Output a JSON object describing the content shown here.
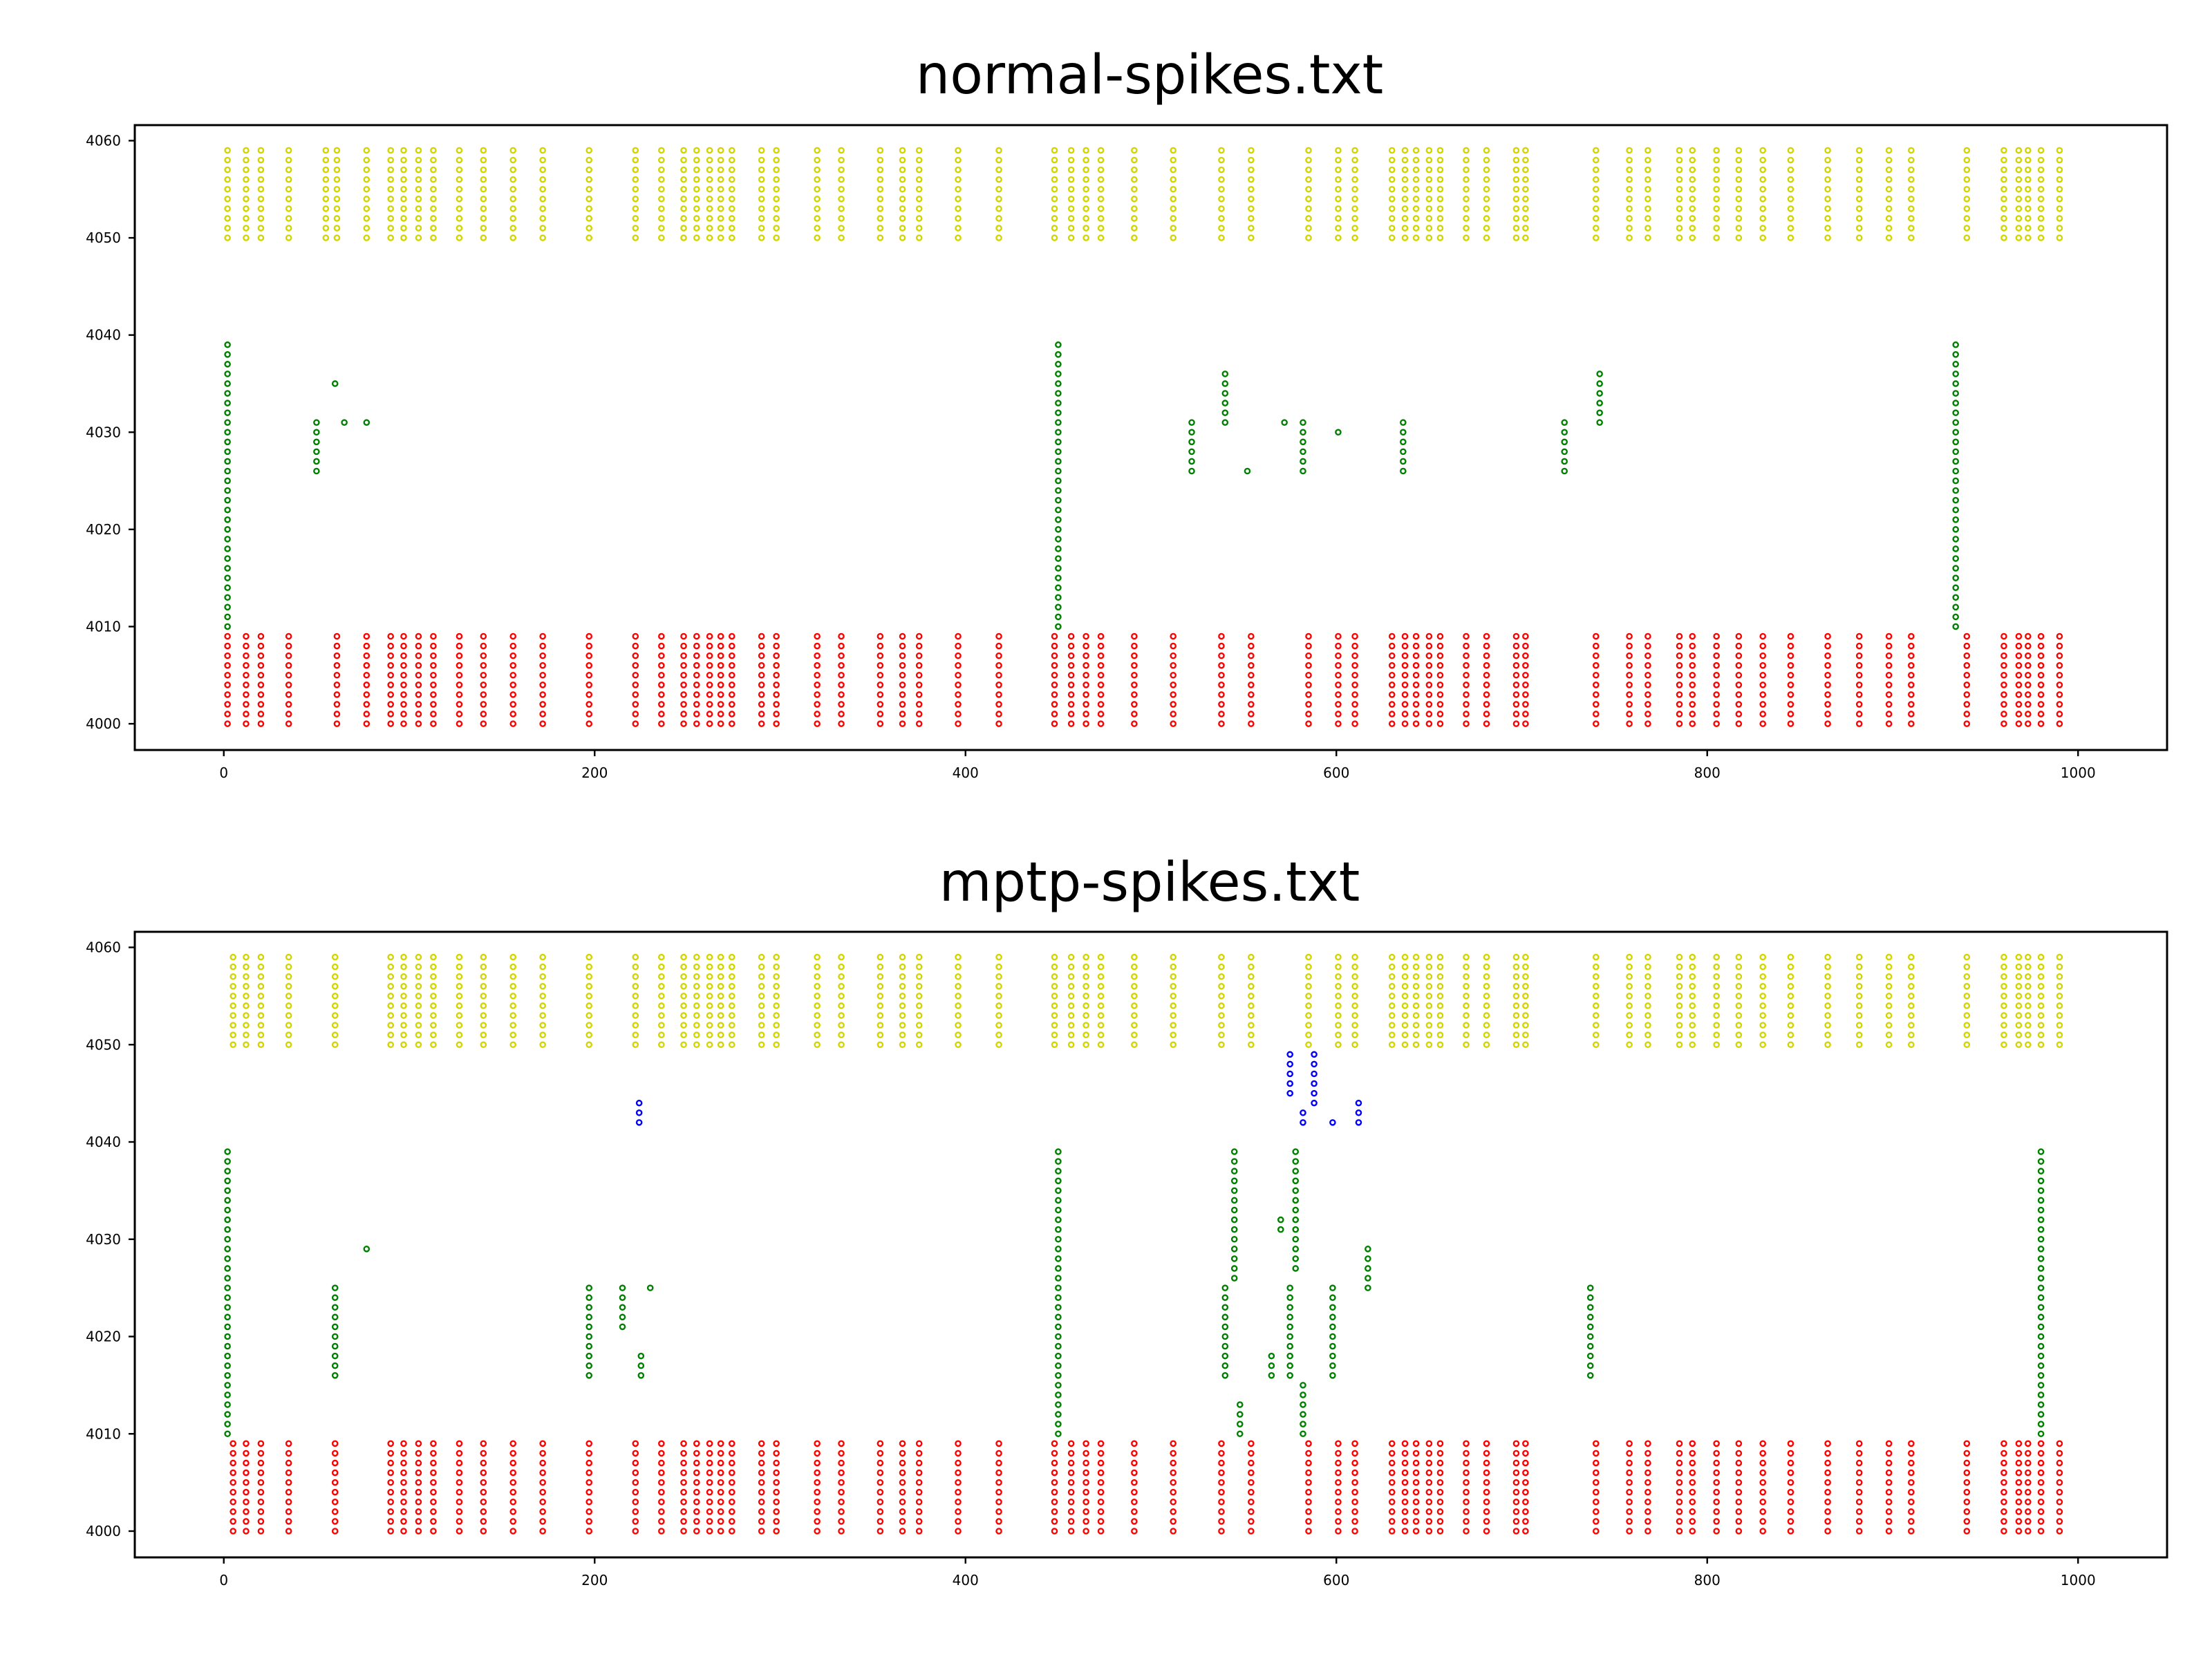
{
  "chart_data": [
    {
      "type": "scatter",
      "title": "normal-spikes.txt",
      "xlabel": "",
      "ylabel": "",
      "xlim": [
        -48,
        1048
      ],
      "ylim": [
        3997.3,
        4061.6
      ],
      "xticks": [
        0,
        200,
        400,
        600,
        800,
        1000
      ],
      "yticks": [
        4000,
        4010,
        4020,
        4030,
        4040,
        4050,
        4060
      ],
      "grid": false,
      "legend": "none",
      "series": [
        {
          "color": "#ff0000",
          "marker": "open-circle",
          "neuron_ids": [
            4000,
            4009
          ],
          "spike_times": [
            2,
            12,
            20,
            35,
            61,
            77,
            90,
            97,
            105,
            113,
            127,
            140,
            156,
            172,
            197,
            222,
            236,
            248,
            255,
            262,
            268,
            274,
            290,
            298,
            320,
            333,
            354,
            366,
            375,
            396,
            418,
            448,
            457,
            465,
            473,
            491,
            512,
            538,
            554,
            585,
            601,
            610,
            630,
            637,
            643,
            650,
            656,
            670,
            681,
            697,
            702,
            740,
            758,
            768,
            785,
            792,
            805,
            817,
            830,
            845,
            865,
            882,
            898,
            910,
            940,
            960,
            968,
            973,
            980,
            990
          ]
        },
        {
          "color": "#d4d400",
          "marker": "open-circle",
          "neuron_ids": [
            4050,
            4059
          ],
          "spike_times": [
            2,
            12,
            20,
            35,
            55,
            61,
            77,
            90,
            97,
            105,
            113,
            127,
            140,
            156,
            172,
            197,
            222,
            236,
            248,
            255,
            262,
            268,
            274,
            290,
            298,
            320,
            333,
            354,
            366,
            375,
            396,
            418,
            448,
            457,
            465,
            473,
            491,
            512,
            538,
            554,
            585,
            601,
            610,
            630,
            637,
            643,
            650,
            656,
            670,
            681,
            697,
            702,
            740,
            758,
            768,
            785,
            792,
            805,
            817,
            830,
            845,
            865,
            882,
            898,
            910,
            940,
            960,
            968,
            973,
            980,
            990
          ]
        },
        {
          "color": "#008000",
          "marker": "open-circle",
          "points": [
            {
              "t": 2,
              "ids": [
                4010,
                4039
              ]
            },
            {
              "t": 450,
              "ids": [
                4010,
                4039
              ]
            },
            {
              "t": 934,
              "ids": [
                4010,
                4039
              ]
            },
            {
              "t": 50,
              "ids": [
                4026,
                4031
              ]
            },
            {
              "t": 60,
              "ids": [
                4035,
                4035
              ]
            },
            {
              "t": 65,
              "ids": [
                4031,
                4031
              ]
            },
            {
              "t": 77,
              "ids": [
                4031,
                4031
              ]
            },
            {
              "t": 522,
              "ids": [
                4026,
                4031
              ]
            },
            {
              "t": 540,
              "ids": [
                4031,
                4036
              ]
            },
            {
              "t": 552,
              "ids": [
                4026,
                4026
              ]
            },
            {
              "t": 572,
              "ids": [
                4031,
                4031
              ]
            },
            {
              "t": 582,
              "ids": [
                4026,
                4031
              ]
            },
            {
              "t": 601,
              "ids": [
                4030,
                4030
              ]
            },
            {
              "t": 636,
              "ids": [
                4026,
                4031
              ]
            },
            {
              "t": 723,
              "ids": [
                4026,
                4031
              ]
            },
            {
              "t": 742,
              "ids": [
                4031,
                4036
              ]
            }
          ]
        }
      ]
    },
    {
      "type": "scatter",
      "title": "mptp-spikes.txt",
      "xlabel": "",
      "ylabel": "",
      "xlim": [
        -48,
        1048
      ],
      "ylim": [
        3997.3,
        4061.6
      ],
      "xticks": [
        0,
        200,
        400,
        600,
        800,
        1000
      ],
      "yticks": [
        4000,
        4010,
        4020,
        4030,
        4040,
        4050,
        4060
      ],
      "grid": false,
      "legend": "none",
      "series": [
        {
          "color": "#ff0000",
          "marker": "open-circle",
          "neuron_ids": [
            4000,
            4009
          ],
          "spike_times": [
            5,
            12,
            20,
            35,
            60,
            90,
            97,
            105,
            113,
            127,
            140,
            156,
            172,
            197,
            222,
            236,
            248,
            255,
            262,
            268,
            274,
            290,
            298,
            320,
            333,
            354,
            366,
            375,
            396,
            418,
            448,
            457,
            465,
            473,
            491,
            512,
            538,
            554,
            585,
            601,
            610,
            630,
            637,
            643,
            650,
            656,
            670,
            681,
            697,
            702,
            740,
            758,
            768,
            785,
            792,
            805,
            817,
            830,
            845,
            865,
            882,
            898,
            910,
            940,
            960,
            968,
            973,
            980,
            990
          ]
        },
        {
          "color": "#d4d400",
          "marker": "open-circle",
          "neuron_ids": [
            4050,
            4059
          ],
          "spike_times": [
            5,
            12,
            20,
            35,
            60,
            90,
            97,
            105,
            113,
            127,
            140,
            156,
            172,
            197,
            222,
            236,
            248,
            255,
            262,
            268,
            274,
            290,
            298,
            320,
            333,
            354,
            366,
            375,
            396,
            418,
            448,
            457,
            465,
            473,
            491,
            512,
            538,
            554,
            585,
            601,
            610,
            630,
            637,
            643,
            650,
            656,
            670,
            681,
            697,
            702,
            740,
            758,
            768,
            785,
            792,
            805,
            817,
            830,
            845,
            865,
            882,
            898,
            910,
            940,
            960,
            968,
            973,
            980,
            990
          ]
        },
        {
          "color": "#008000",
          "marker": "open-circle",
          "points": [
            {
              "t": 2,
              "ids": [
                4010,
                4039
              ]
            },
            {
              "t": 450,
              "ids": [
                4010,
                4039
              ]
            },
            {
              "t": 980,
              "ids": [
                4010,
                4039
              ]
            },
            {
              "t": 60,
              "ids": [
                4016,
                4025
              ]
            },
            {
              "t": 77,
              "ids": [
                4029,
                4029
              ]
            },
            {
              "t": 197,
              "ids": [
                4016,
                4025
              ]
            },
            {
              "t": 215,
              "ids": [
                4021,
                4025
              ]
            },
            {
              "t": 225,
              "ids": [
                4016,
                4018
              ]
            },
            {
              "t": 230,
              "ids": [
                4025,
                4025
              ]
            },
            {
              "t": 540,
              "ids": [
                4016,
                4025
              ]
            },
            {
              "t": 545,
              "ids": [
                4026,
                4039
              ]
            },
            {
              "t": 548,
              "ids": [
                4010,
                4013
              ]
            },
            {
              "t": 565,
              "ids": [
                4016,
                4018
              ]
            },
            {
              "t": 570,
              "ids": [
                4031,
                4032
              ]
            },
            {
              "t": 575,
              "ids": [
                4016,
                4025
              ]
            },
            {
              "t": 578,
              "ids": [
                4027,
                4039
              ]
            },
            {
              "t": 582,
              "ids": [
                4010,
                4015
              ]
            },
            {
              "t": 598,
              "ids": [
                4016,
                4025
              ]
            },
            {
              "t": 617,
              "ids": [
                4025,
                4029
              ]
            },
            {
              "t": 737,
              "ids": [
                4016,
                4025
              ]
            }
          ]
        },
        {
          "color": "#0000ff",
          "marker": "open-circle",
          "points": [
            {
              "t": 224,
              "ids": [
                4042,
                4044
              ]
            },
            {
              "t": 575,
              "ids": [
                4045,
                4049
              ]
            },
            {
              "t": 588,
              "ids": [
                4044,
                4049
              ]
            },
            {
              "t": 582,
              "ids": [
                4042,
                4043
              ]
            },
            {
              "t": 598,
              "ids": [
                4042,
                4042
              ]
            },
            {
              "t": 612,
              "ids": [
                4042,
                4044
              ]
            }
          ]
        }
      ]
    }
  ]
}
